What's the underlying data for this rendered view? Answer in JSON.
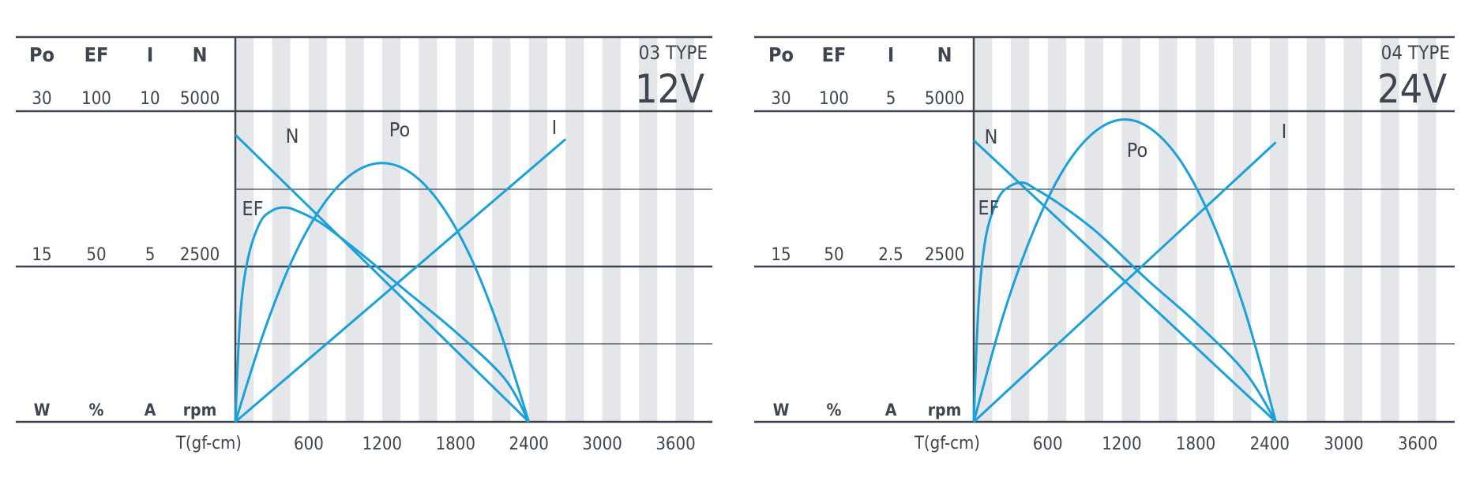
{
  "chart_data": [
    {
      "type": "line",
      "model": "03 TYPE",
      "voltage": "12V",
      "headers": [
        "Po",
        "EF",
        "I",
        "N"
      ],
      "top_scale": [
        "30",
        "100",
        "10",
        "5000"
      ],
      "mid_scale": [
        "15",
        "50",
        "5",
        "2500"
      ],
      "units": [
        "W",
        "%",
        "A",
        "rpm"
      ],
      "xlabel": "T(gf-cm)",
      "x_ticks": [
        "600",
        "1200",
        "1800",
        "2400",
        "3000",
        "3600"
      ],
      "xlim": [
        0,
        3900
      ],
      "series": [
        {
          "name": "N",
          "unit": "rpm",
          "x": [
            0,
            2400
          ],
          "values": [
            4620,
            0
          ]
        },
        {
          "name": "I",
          "unit": "A",
          "x": [
            0,
            2700
          ],
          "values": [
            0,
            9.1
          ]
        },
        {
          "name": "Po",
          "unit": "W",
          "x": [
            0,
            240,
            480,
            720,
            960,
            1200,
            1440,
            1680,
            1920,
            2160,
            2400
          ],
          "values": [
            0,
            8.9,
            16.0,
            21.0,
            24.0,
            25.0,
            24.0,
            21.0,
            16.0,
            8.9,
            0
          ]
        },
        {
          "name": "EF",
          "unit": "%",
          "x": [
            0,
            40,
            100,
            200,
            300,
            400,
            500,
            700,
            1000,
            1400,
            1800,
            2200,
            2400
          ],
          "values": [
            0,
            34,
            52,
            64,
            68,
            69,
            68,
            64,
            55,
            42,
            29,
            14,
            0
          ]
        }
      ]
    },
    {
      "type": "line",
      "model": "04 TYPE",
      "voltage": "24V",
      "headers": [
        "Po",
        "EF",
        "I",
        "N"
      ],
      "top_scale": [
        "30",
        "100",
        "5",
        "5000"
      ],
      "mid_scale": [
        "15",
        "50",
        "2.5",
        "2500"
      ],
      "units": [
        "W",
        "%",
        "A",
        "rpm"
      ],
      "xlabel": "T(gf-cm)",
      "x_ticks": [
        "600",
        "1200",
        "1800",
        "2400",
        "3000",
        "3600"
      ],
      "xlim": [
        0,
        3900
      ],
      "series": [
        {
          "name": "N",
          "unit": "rpm",
          "x": [
            0,
            2450
          ],
          "values": [
            4530,
            0
          ]
        },
        {
          "name": "I",
          "unit": "A",
          "x": [
            0,
            2450
          ],
          "values": [
            0,
            4.5
          ]
        },
        {
          "name": "Po",
          "unit": "W",
          "x": [
            0,
            245,
            490,
            735,
            980,
            1225,
            1470,
            1715,
            1960,
            2205,
            2450
          ],
          "values": [
            0,
            10.5,
            18.6,
            24.5,
            28.0,
            29.2,
            28.0,
            24.5,
            18.6,
            10.5,
            0
          ]
        },
        {
          "name": "EF",
          "unit": "%",
          "x": [
            0,
            40,
            100,
            200,
            300,
            400,
            500,
            700,
            1000,
            1400,
            1800,
            2200,
            2450
          ],
          "values": [
            0,
            38,
            60,
            72,
            76,
            77,
            75,
            70,
            61,
            46,
            32,
            16,
            0
          ]
        }
      ]
    }
  ]
}
